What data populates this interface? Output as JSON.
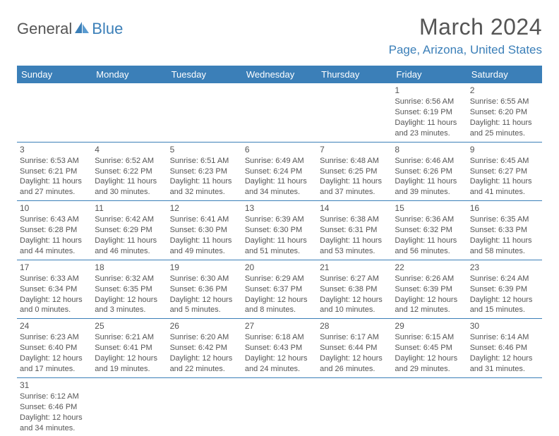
{
  "logo": {
    "text1": "General",
    "text2": "Blue"
  },
  "title": "March 2024",
  "location": "Page, Arizona, United States",
  "colors": {
    "accent": "#3b7fb8",
    "text": "#555555",
    "bg": "#ffffff"
  },
  "dayHeaders": [
    "Sunday",
    "Monday",
    "Tuesday",
    "Wednesday",
    "Thursday",
    "Friday",
    "Saturday"
  ],
  "weeks": [
    [
      null,
      null,
      null,
      null,
      null,
      {
        "n": "1",
        "sr": "Sunrise: 6:56 AM",
        "ss": "Sunset: 6:19 PM",
        "d1": "Daylight: 11 hours",
        "d2": "and 23 minutes."
      },
      {
        "n": "2",
        "sr": "Sunrise: 6:55 AM",
        "ss": "Sunset: 6:20 PM",
        "d1": "Daylight: 11 hours",
        "d2": "and 25 minutes."
      }
    ],
    [
      {
        "n": "3",
        "sr": "Sunrise: 6:53 AM",
        "ss": "Sunset: 6:21 PM",
        "d1": "Daylight: 11 hours",
        "d2": "and 27 minutes."
      },
      {
        "n": "4",
        "sr": "Sunrise: 6:52 AM",
        "ss": "Sunset: 6:22 PM",
        "d1": "Daylight: 11 hours",
        "d2": "and 30 minutes."
      },
      {
        "n": "5",
        "sr": "Sunrise: 6:51 AM",
        "ss": "Sunset: 6:23 PM",
        "d1": "Daylight: 11 hours",
        "d2": "and 32 minutes."
      },
      {
        "n": "6",
        "sr": "Sunrise: 6:49 AM",
        "ss": "Sunset: 6:24 PM",
        "d1": "Daylight: 11 hours",
        "d2": "and 34 minutes."
      },
      {
        "n": "7",
        "sr": "Sunrise: 6:48 AM",
        "ss": "Sunset: 6:25 PM",
        "d1": "Daylight: 11 hours",
        "d2": "and 37 minutes."
      },
      {
        "n": "8",
        "sr": "Sunrise: 6:46 AM",
        "ss": "Sunset: 6:26 PM",
        "d1": "Daylight: 11 hours",
        "d2": "and 39 minutes."
      },
      {
        "n": "9",
        "sr": "Sunrise: 6:45 AM",
        "ss": "Sunset: 6:27 PM",
        "d1": "Daylight: 11 hours",
        "d2": "and 41 minutes."
      }
    ],
    [
      {
        "n": "10",
        "sr": "Sunrise: 6:43 AM",
        "ss": "Sunset: 6:28 PM",
        "d1": "Daylight: 11 hours",
        "d2": "and 44 minutes."
      },
      {
        "n": "11",
        "sr": "Sunrise: 6:42 AM",
        "ss": "Sunset: 6:29 PM",
        "d1": "Daylight: 11 hours",
        "d2": "and 46 minutes."
      },
      {
        "n": "12",
        "sr": "Sunrise: 6:41 AM",
        "ss": "Sunset: 6:30 PM",
        "d1": "Daylight: 11 hours",
        "d2": "and 49 minutes."
      },
      {
        "n": "13",
        "sr": "Sunrise: 6:39 AM",
        "ss": "Sunset: 6:30 PM",
        "d1": "Daylight: 11 hours",
        "d2": "and 51 minutes."
      },
      {
        "n": "14",
        "sr": "Sunrise: 6:38 AM",
        "ss": "Sunset: 6:31 PM",
        "d1": "Daylight: 11 hours",
        "d2": "and 53 minutes."
      },
      {
        "n": "15",
        "sr": "Sunrise: 6:36 AM",
        "ss": "Sunset: 6:32 PM",
        "d1": "Daylight: 11 hours",
        "d2": "and 56 minutes."
      },
      {
        "n": "16",
        "sr": "Sunrise: 6:35 AM",
        "ss": "Sunset: 6:33 PM",
        "d1": "Daylight: 11 hours",
        "d2": "and 58 minutes."
      }
    ],
    [
      {
        "n": "17",
        "sr": "Sunrise: 6:33 AM",
        "ss": "Sunset: 6:34 PM",
        "d1": "Daylight: 12 hours",
        "d2": "and 0 minutes."
      },
      {
        "n": "18",
        "sr": "Sunrise: 6:32 AM",
        "ss": "Sunset: 6:35 PM",
        "d1": "Daylight: 12 hours",
        "d2": "and 3 minutes."
      },
      {
        "n": "19",
        "sr": "Sunrise: 6:30 AM",
        "ss": "Sunset: 6:36 PM",
        "d1": "Daylight: 12 hours",
        "d2": "and 5 minutes."
      },
      {
        "n": "20",
        "sr": "Sunrise: 6:29 AM",
        "ss": "Sunset: 6:37 PM",
        "d1": "Daylight: 12 hours",
        "d2": "and 8 minutes."
      },
      {
        "n": "21",
        "sr": "Sunrise: 6:27 AM",
        "ss": "Sunset: 6:38 PM",
        "d1": "Daylight: 12 hours",
        "d2": "and 10 minutes."
      },
      {
        "n": "22",
        "sr": "Sunrise: 6:26 AM",
        "ss": "Sunset: 6:39 PM",
        "d1": "Daylight: 12 hours",
        "d2": "and 12 minutes."
      },
      {
        "n": "23",
        "sr": "Sunrise: 6:24 AM",
        "ss": "Sunset: 6:39 PM",
        "d1": "Daylight: 12 hours",
        "d2": "and 15 minutes."
      }
    ],
    [
      {
        "n": "24",
        "sr": "Sunrise: 6:23 AM",
        "ss": "Sunset: 6:40 PM",
        "d1": "Daylight: 12 hours",
        "d2": "and 17 minutes."
      },
      {
        "n": "25",
        "sr": "Sunrise: 6:21 AM",
        "ss": "Sunset: 6:41 PM",
        "d1": "Daylight: 12 hours",
        "d2": "and 19 minutes."
      },
      {
        "n": "26",
        "sr": "Sunrise: 6:20 AM",
        "ss": "Sunset: 6:42 PM",
        "d1": "Daylight: 12 hours",
        "d2": "and 22 minutes."
      },
      {
        "n": "27",
        "sr": "Sunrise: 6:18 AM",
        "ss": "Sunset: 6:43 PM",
        "d1": "Daylight: 12 hours",
        "d2": "and 24 minutes."
      },
      {
        "n": "28",
        "sr": "Sunrise: 6:17 AM",
        "ss": "Sunset: 6:44 PM",
        "d1": "Daylight: 12 hours",
        "d2": "and 26 minutes."
      },
      {
        "n": "29",
        "sr": "Sunrise: 6:15 AM",
        "ss": "Sunset: 6:45 PM",
        "d1": "Daylight: 12 hours",
        "d2": "and 29 minutes."
      },
      {
        "n": "30",
        "sr": "Sunrise: 6:14 AM",
        "ss": "Sunset: 6:46 PM",
        "d1": "Daylight: 12 hours",
        "d2": "and 31 minutes."
      }
    ],
    [
      {
        "n": "31",
        "sr": "Sunrise: 6:12 AM",
        "ss": "Sunset: 6:46 PM",
        "d1": "Daylight: 12 hours",
        "d2": "and 34 minutes."
      },
      null,
      null,
      null,
      null,
      null,
      null
    ]
  ]
}
